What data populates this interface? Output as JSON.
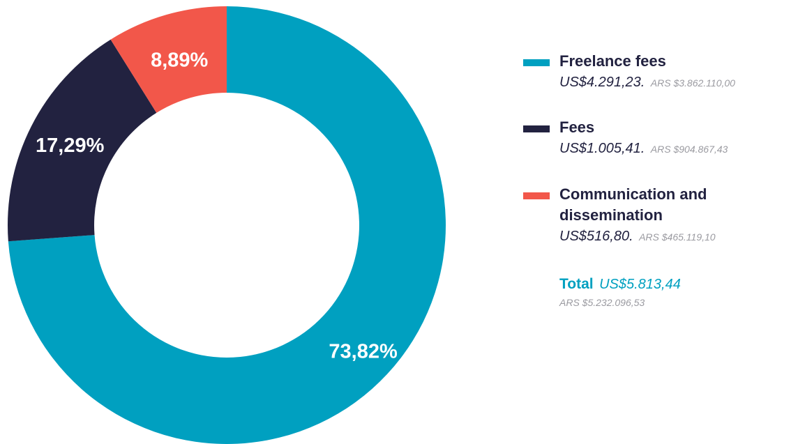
{
  "chart_data": {
    "type": "pie",
    "title": "",
    "categories": [
      "Freelance fees",
      "Fees",
      "Communication and dissemination"
    ],
    "values": [
      73.82,
      17.29,
      8.89
    ],
    "value_labels": [
      "73,82%",
      "17,29%",
      "8,89%"
    ],
    "colors": [
      "#00a0c0",
      "#222240",
      "#f2574a"
    ],
    "donut": true,
    "start": "12 o'clock, clockwise",
    "legend_position": "right"
  },
  "legend": {
    "items": [
      {
        "name": "Freelance fees",
        "usd": "US$4.291,23.",
        "ars": "ARS $3.862.110,00",
        "color": "#00a0c0"
      },
      {
        "name": "Fees",
        "usd": "US$1.005,41.",
        "ars": "ARS $904.867,43",
        "color": "#222240"
      },
      {
        "name": "Communication and dissemination",
        "usd": "US$516,80.",
        "ars": "ARS $465.119,10",
        "color": "#f2574a"
      }
    ],
    "total": {
      "label": "Total",
      "usd": "US$5.813,44",
      "ars": "ARS $5.232.096,53"
    }
  }
}
